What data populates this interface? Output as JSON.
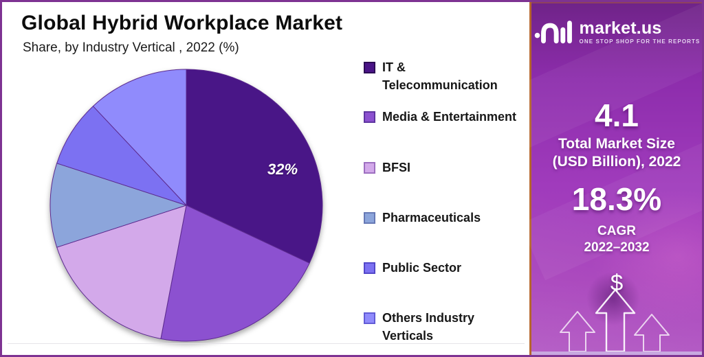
{
  "header": {
    "title": "Global Hybrid Workplace Market",
    "subtitle": "Share, by Industry Vertical , 2022 (%)"
  },
  "chart_data": {
    "type": "pie",
    "title": "Global Hybrid Workplace Market Share, by Industry Vertical, 2022 (%)",
    "categories": [
      "IT & Telecommunication",
      "Media & Entertainment",
      "BFSI",
      "Pharmaceuticals",
      "Public Sector",
      "Others Industry Verticals"
    ],
    "values": [
      32,
      21,
      17,
      10,
      8,
      12
    ],
    "unit": "%",
    "colors": [
      "#4a1487",
      "#8c51d0",
      "#d3a9ea",
      "#8ca5db",
      "#7c71f2",
      "#908bfc"
    ],
    "swatch_border_colors": [
      "#2d0b55",
      "#5e35a0",
      "#9d6fc0",
      "#6679b5",
      "#5247c9",
      "#625cd6"
    ],
    "slice_stroke": "#5c2b8e",
    "start_angle_deg": 0,
    "direction": "clockwise",
    "legend_position": "right",
    "labeled_slice": {
      "index": 0,
      "label": "32%"
    }
  },
  "sidebar": {
    "brand": {
      "name": "market.us",
      "tagline": "ONE STOP SHOP FOR THE REPORTS",
      "logo_icon": "market-us-mark"
    },
    "stats": [
      {
        "value": "4.1",
        "label_line1": "Total Market Size",
        "label_line2": "(USD Billion), 2022"
      },
      {
        "value": "18.3%",
        "label_line1": "CAGR",
        "label_line2": "2022–2032"
      }
    ],
    "dollar_symbol": "$",
    "icons": [
      "up-arrow",
      "up-arrow",
      "up-arrow"
    ],
    "accent_background": "#a03bbc",
    "border_accent": "#b5662c"
  },
  "frame": {
    "border_color": "#7e3392"
  }
}
